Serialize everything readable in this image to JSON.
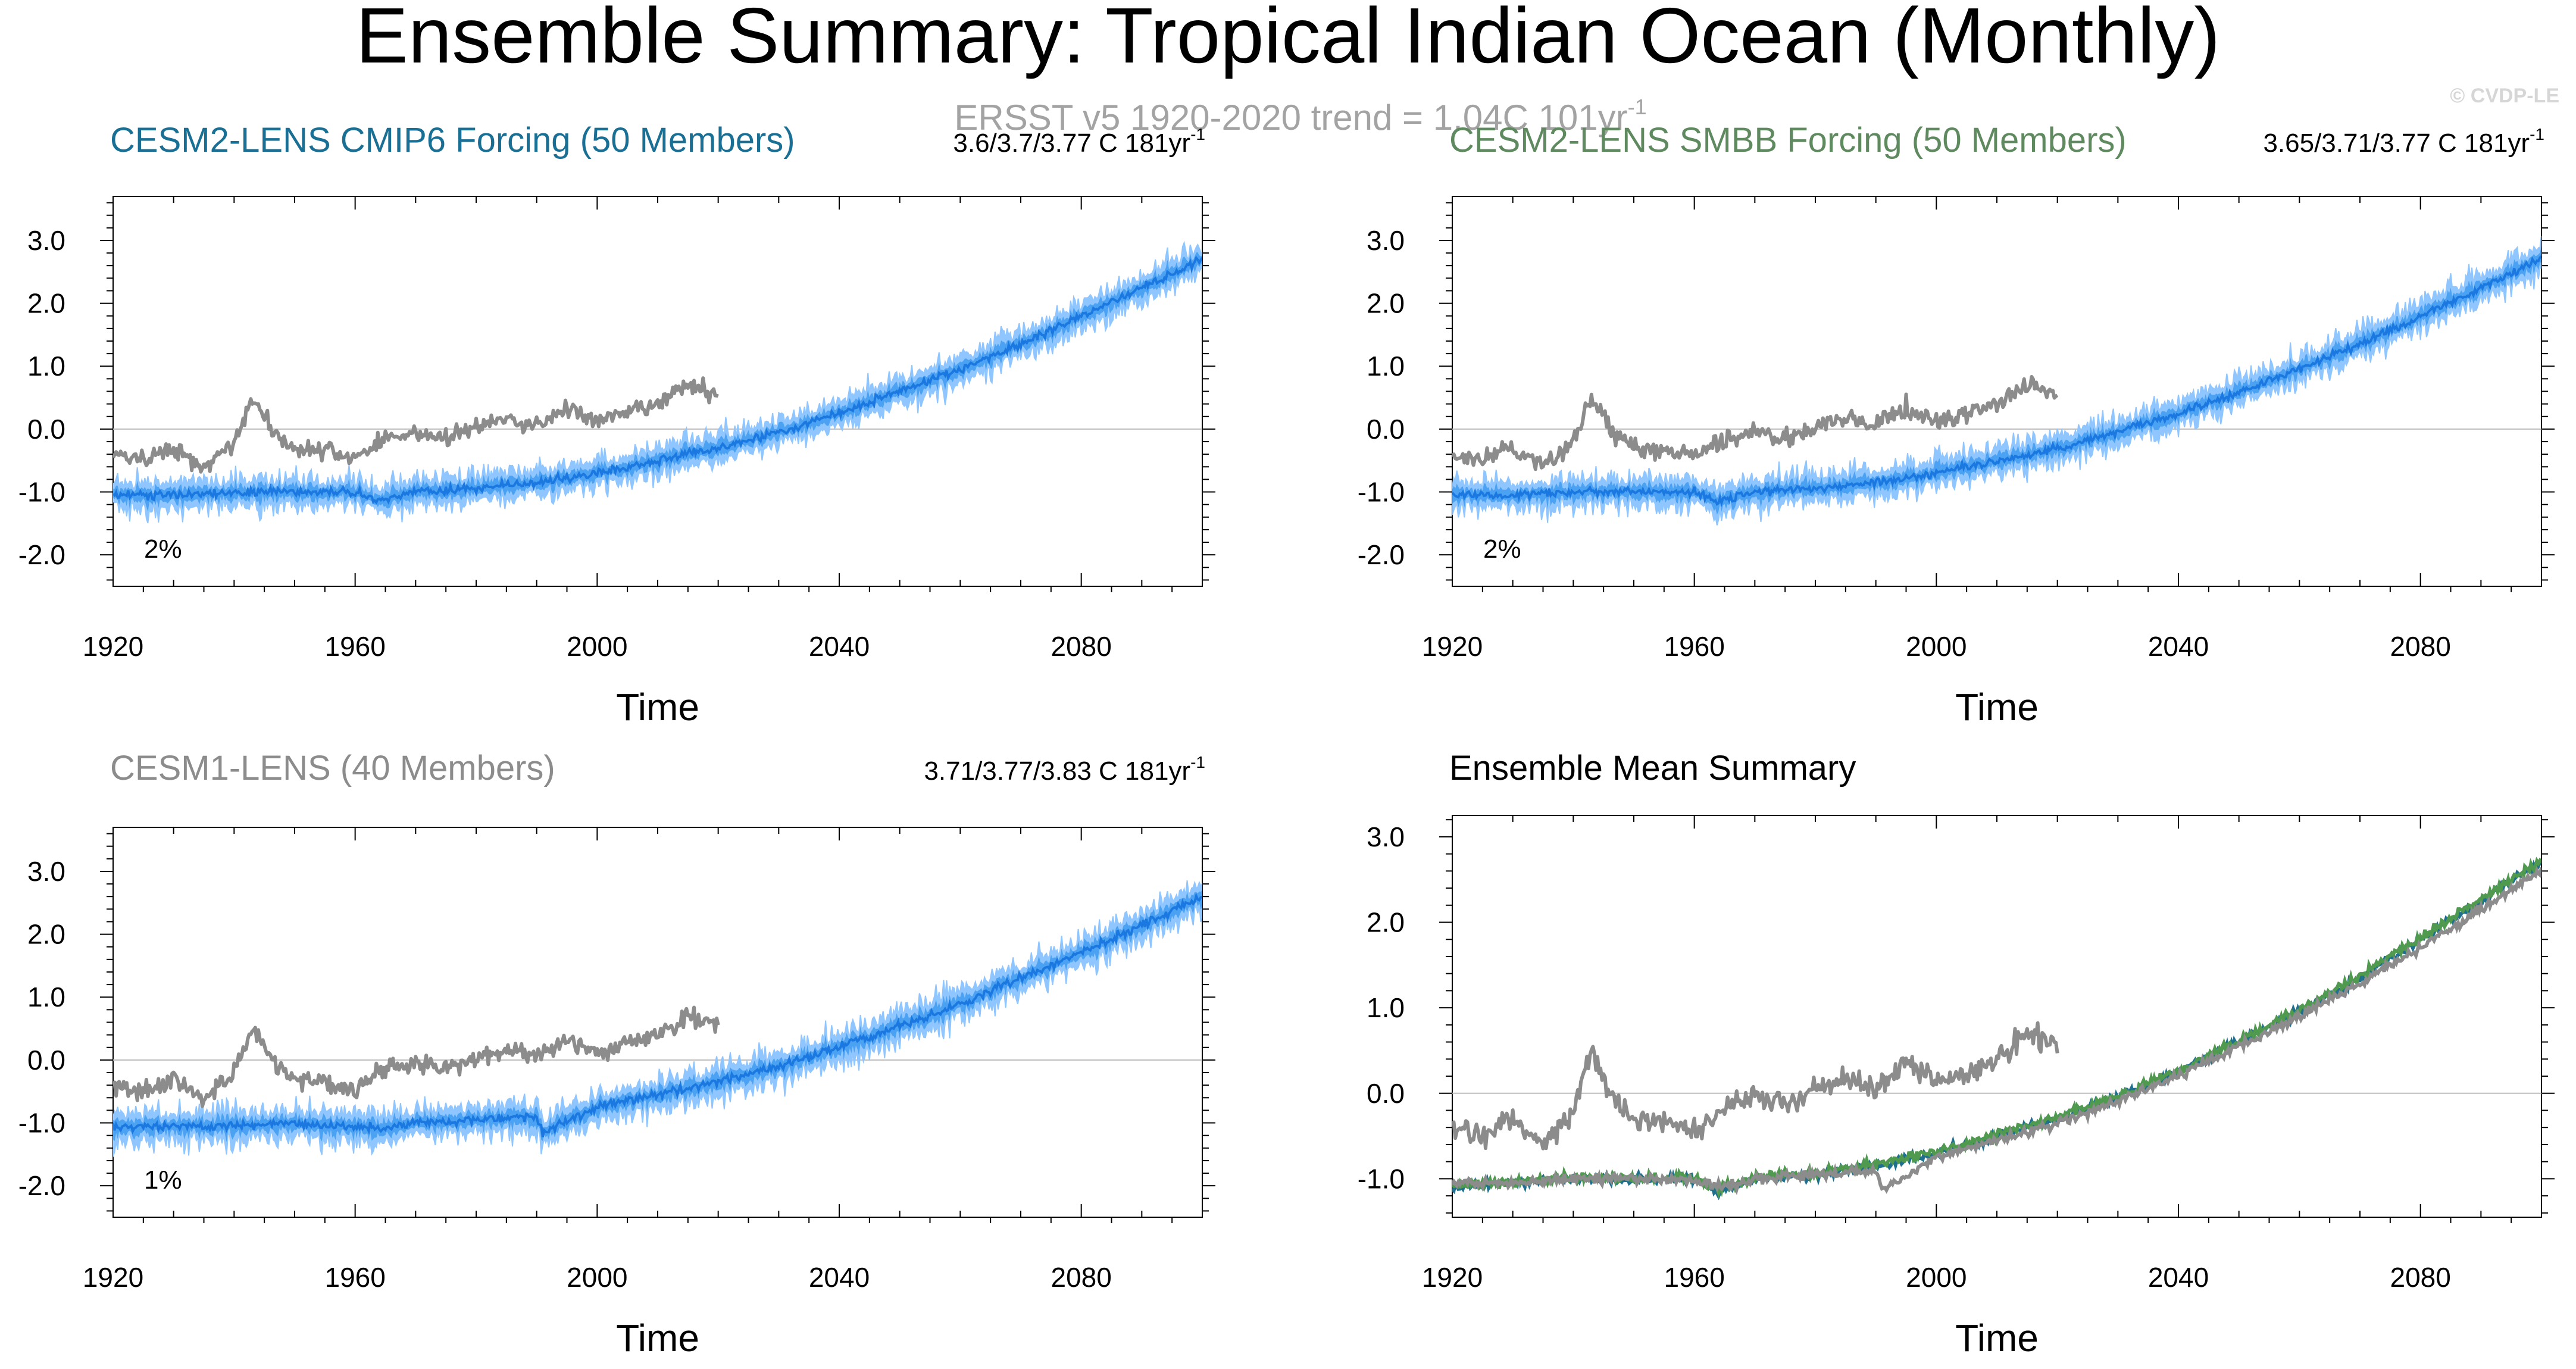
{
  "page": {
    "title": "Ensemble Summary: Tropical Indian Ocean (Monthly)",
    "subtitle": "ERSST v5 1920-2020 trend = 1.04C 101yr",
    "subtitle_sup": "-1",
    "watermark": "© CVDP-LE"
  },
  "colors": {
    "observed": "#8c8c8c",
    "ensemble_spread": "#8fc6ff",
    "ensemble_band": "#3f9bf0",
    "ensemble_mean": "#1a78e0",
    "cesm2_cmip6_title": "#1a6f94",
    "cesm2_smbb_title": "#5f8a5f",
    "cesm1_title": "#8c8c8c",
    "summary_cmip6": "#1f6f8f",
    "summary_smbb": "#4f9a4f"
  },
  "chart_data": [
    {
      "type": "line",
      "title": "CESM2-LENS CMIP6 Forcing (50 Members)",
      "trend_label": "3.6/3.7/3.77 C 181yr",
      "trend_sup": "-1",
      "rank_label": "2%",
      "xlabel": "Time",
      "ylabel": "",
      "xlim": [
        1920,
        2100
      ],
      "ylim": [
        -2.5,
        3.7
      ],
      "xticks": [
        "1920",
        "1960",
        "2000",
        "2040",
        "2080"
      ],
      "yticks": [
        "3.0",
        "2.0",
        "1.0",
        "0.0",
        "-1.0",
        "-2.0"
      ],
      "series": [
        {
          "role": "ensemble",
          "x": [
            1920,
            1930,
            1940,
            1950,
            1960,
            1964,
            1970,
            1980,
            1990,
            2000,
            2010,
            2020,
            2030,
            2040,
            2050,
            2060,
            2070,
            2080,
            2090,
            2100
          ],
          "values": [
            -1.05,
            -1.05,
            -1.0,
            -1.0,
            -1.0,
            -1.15,
            -1.0,
            -0.95,
            -0.85,
            -0.7,
            -0.5,
            -0.3,
            -0.05,
            0.25,
            0.6,
            0.95,
            1.35,
            1.8,
            2.25,
            2.7
          ],
          "spread": 0.28
        },
        {
          "role": "observed",
          "x": [
            1920,
            1925,
            1930,
            1935,
            1940,
            1943,
            1947,
            1950,
            1955,
            1960,
            1965,
            1970,
            1975,
            1980,
            1985,
            1990,
            1995,
            2000,
            2005,
            2010,
            2015,
            2020
          ],
          "values": [
            -0.4,
            -0.5,
            -0.3,
            -0.6,
            -0.2,
            0.5,
            -0.1,
            -0.3,
            -0.35,
            -0.45,
            -0.15,
            -0.05,
            -0.15,
            0.05,
            0.15,
            0.05,
            0.35,
            0.1,
            0.25,
            0.4,
            0.7,
            0.55
          ]
        }
      ]
    },
    {
      "type": "line",
      "title": "CESM2-LENS SMBB Forcing (50 Members)",
      "trend_label": "3.65/3.71/3.77 C 181yr",
      "trend_sup": "-1",
      "rank_label": "2%",
      "xlabel": "Time",
      "ylabel": "",
      "xlim": [
        1920,
        2100
      ],
      "ylim": [
        -2.5,
        3.7
      ],
      "xticks": [
        "1920",
        "1960",
        "2000",
        "2040",
        "2080"
      ],
      "yticks": [
        "3.0",
        "2.0",
        "1.0",
        "0.0",
        "-1.0",
        "-2.0"
      ],
      "series": [
        {
          "role": "ensemble",
          "x": [
            1920,
            1930,
            1940,
            1950,
            1960,
            1964,
            1970,
            1980,
            1990,
            2000,
            2010,
            2020,
            2030,
            2040,
            2050,
            2060,
            2070,
            2080,
            2090,
            2100
          ],
          "values": [
            -1.05,
            -1.05,
            -1.0,
            -1.0,
            -1.0,
            -1.15,
            -1.0,
            -0.95,
            -0.85,
            -0.7,
            -0.5,
            -0.3,
            -0.05,
            0.25,
            0.6,
            0.95,
            1.35,
            1.8,
            2.25,
            2.7
          ],
          "spread": 0.28
        },
        {
          "role": "observed",
          "x": [
            1920,
            1925,
            1930,
            1935,
            1940,
            1943,
            1947,
            1950,
            1955,
            1960,
            1965,
            1970,
            1975,
            1980,
            1985,
            1990,
            1995,
            2000,
            2005,
            2010,
            2015,
            2020
          ],
          "values": [
            -0.4,
            -0.5,
            -0.3,
            -0.6,
            -0.2,
            0.5,
            -0.1,
            -0.3,
            -0.35,
            -0.45,
            -0.15,
            -0.05,
            -0.15,
            0.05,
            0.15,
            0.05,
            0.35,
            0.1,
            0.25,
            0.4,
            0.7,
            0.55
          ]
        }
      ]
    },
    {
      "type": "line",
      "title": "CESM1-LENS (40 Members)",
      "trend_label": "3.71/3.77/3.83 C 181yr",
      "trend_sup": "-1",
      "rank_label": "1%",
      "xlabel": "Time",
      "ylabel": "",
      "xlim": [
        1920,
        2100
      ],
      "ylim": [
        -2.5,
        3.7
      ],
      "xticks": [
        "1920",
        "1960",
        "2000",
        "2040",
        "2080"
      ],
      "yticks": [
        "3.0",
        "2.0",
        "1.0",
        "0.0",
        "-1.0",
        "-2.0"
      ],
      "series": [
        {
          "role": "ensemble",
          "x": [
            1920,
            1930,
            1940,
            1950,
            1960,
            1964,
            1970,
            1980,
            1990,
            1991,
            2000,
            2010,
            2020,
            2030,
            2040,
            2050,
            2060,
            2070,
            2080,
            2090,
            2100
          ],
          "values": [
            -1.05,
            -1.05,
            -1.05,
            -1.0,
            -1.05,
            -1.1,
            -1.0,
            -0.95,
            -0.9,
            -1.15,
            -0.75,
            -0.55,
            -0.35,
            -0.1,
            0.2,
            0.55,
            0.9,
            1.3,
            1.7,
            2.15,
            2.6
          ],
          "spread": 0.3
        },
        {
          "role": "observed",
          "x": [
            1920,
            1925,
            1930,
            1935,
            1940,
            1943,
            1947,
            1950,
            1955,
            1960,
            1965,
            1970,
            1975,
            1980,
            1985,
            1990,
            1995,
            2000,
            2005,
            2010,
            2015,
            2020
          ],
          "values": [
            -0.4,
            -0.5,
            -0.3,
            -0.6,
            -0.2,
            0.5,
            -0.1,
            -0.3,
            -0.35,
            -0.45,
            -0.15,
            -0.05,
            -0.15,
            0.05,
            0.15,
            0.05,
            0.35,
            0.1,
            0.25,
            0.4,
            0.7,
            0.55
          ]
        }
      ]
    },
    {
      "type": "line",
      "title": "Ensemble Mean Summary",
      "xlabel": "Time",
      "ylabel": "",
      "xlim": [
        1920,
        2100
      ],
      "ylim": [
        -1.45,
        3.25
      ],
      "xticks": [
        "1920",
        "1960",
        "2000",
        "2040",
        "2080"
      ],
      "yticks": [
        "3.0",
        "2.0",
        "1.0",
        "0.0",
        "-1.0"
      ],
      "series": [
        {
          "role": "mean_cmip6",
          "x": [
            1920,
            1930,
            1940,
            1950,
            1960,
            1964,
            1970,
            1980,
            1990,
            2000,
            2010,
            2020,
            2030,
            2040,
            2050,
            2060,
            2070,
            2080,
            2090,
            2100
          ],
          "values": [
            -1.1,
            -1.05,
            -1.0,
            -1.0,
            -1.0,
            -1.15,
            -1.0,
            -0.95,
            -0.85,
            -0.7,
            -0.5,
            -0.3,
            -0.05,
            0.25,
            0.6,
            0.95,
            1.35,
            1.8,
            2.25,
            2.7
          ]
        },
        {
          "role": "mean_smbb",
          "x": [
            1920,
            1930,
            1940,
            1950,
            1960,
            1964,
            1970,
            1980,
            1990,
            2000,
            2010,
            2020,
            2030,
            2040,
            2050,
            2060,
            2070,
            2080,
            2090,
            2100
          ],
          "values": [
            -1.08,
            -1.03,
            -0.98,
            -1.0,
            -0.98,
            -1.12,
            -0.98,
            -0.93,
            -0.83,
            -0.68,
            -0.48,
            -0.28,
            -0.03,
            0.27,
            0.62,
            0.97,
            1.37,
            1.82,
            2.27,
            2.72
          ]
        },
        {
          "role": "mean_cesm1",
          "x": [
            1920,
            1930,
            1940,
            1950,
            1960,
            1964,
            1970,
            1980,
            1990,
            1991,
            2000,
            2010,
            2020,
            2030,
            2040,
            2050,
            2060,
            2070,
            2080,
            2090,
            2100
          ],
          "values": [
            -1.05,
            -1.05,
            -1.0,
            -1.0,
            -1.02,
            -1.1,
            -1.0,
            -0.95,
            -0.9,
            -1.12,
            -0.75,
            -0.55,
            -0.35,
            -0.1,
            0.2,
            0.55,
            0.9,
            1.3,
            1.7,
            2.15,
            2.6
          ]
        },
        {
          "role": "observed",
          "x": [
            1920,
            1925,
            1930,
            1935,
            1940,
            1943,
            1947,
            1950,
            1955,
            1960,
            1965,
            1970,
            1975,
            1980,
            1985,
            1990,
            1995,
            2000,
            2005,
            2010,
            2015,
            2020
          ],
          "values": [
            -0.4,
            -0.5,
            -0.3,
            -0.6,
            -0.2,
            0.5,
            -0.1,
            -0.3,
            -0.35,
            -0.45,
            -0.15,
            -0.05,
            -0.15,
            0.05,
            0.15,
            0.05,
            0.35,
            0.1,
            0.25,
            0.4,
            0.7,
            0.55
          ]
        }
      ]
    }
  ]
}
